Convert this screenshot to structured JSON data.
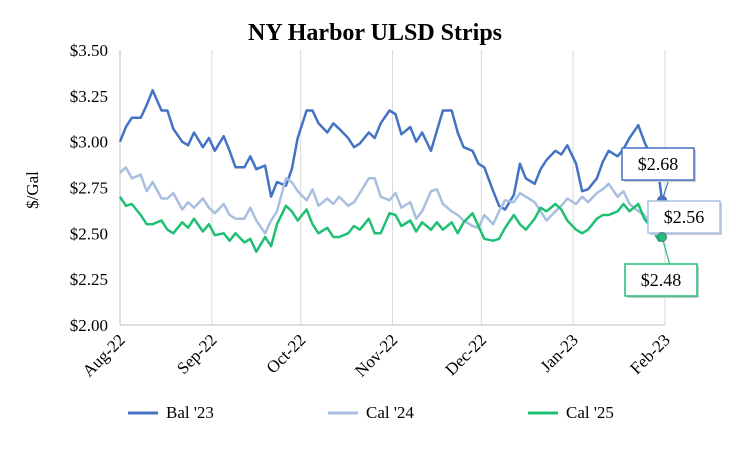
{
  "chart_data": {
    "type": "line",
    "title": "NY Harbor ULSD Strips",
    "ylabel": "$/Gal",
    "xlabel": "",
    "ylim": [
      2.0,
      3.5
    ],
    "xlim": [
      "2022-08-01",
      "2023-02-01"
    ],
    "yticks": [
      "$2.00",
      "$2.25",
      "$2.50",
      "$2.75",
      "$3.00",
      "$3.25",
      "$3.50"
    ],
    "xticks": [
      {
        "label": "Aug-22",
        "date": "2022-08-01"
      },
      {
        "label": "Sep-22",
        "date": "2022-09-01"
      },
      {
        "label": "Oct-22",
        "date": "2022-10-01"
      },
      {
        "label": "Nov-22",
        "date": "2022-11-01"
      },
      {
        "label": "Dec-22",
        "date": "2022-12-01"
      },
      {
        "label": "Jan-23",
        "date": "2023-01-01"
      },
      {
        "label": "Feb-23",
        "date": "2023-02-01"
      }
    ],
    "grid": {
      "x": true,
      "y": false
    },
    "legend": "bottom",
    "series": [
      {
        "name": "Bal '23",
        "color": "#4472c4",
        "points": [
          [
            "2022-08-01",
            3.0
          ],
          [
            "2022-08-03",
            3.08
          ],
          [
            "2022-08-05",
            3.13
          ],
          [
            "2022-08-08",
            3.13
          ],
          [
            "2022-08-10",
            3.2
          ],
          [
            "2022-08-12",
            3.28
          ],
          [
            "2022-08-15",
            3.17
          ],
          [
            "2022-08-17",
            3.17
          ],
          [
            "2022-08-19",
            3.07
          ],
          [
            "2022-08-22",
            3.0
          ],
          [
            "2022-08-24",
            2.98
          ],
          [
            "2022-08-26",
            3.05
          ],
          [
            "2022-08-29",
            2.97
          ],
          [
            "2022-08-31",
            3.02
          ],
          [
            "2022-09-02",
            2.95
          ],
          [
            "2022-09-05",
            3.03
          ],
          [
            "2022-09-07",
            2.95
          ],
          [
            "2022-09-09",
            2.86
          ],
          [
            "2022-09-12",
            2.86
          ],
          [
            "2022-09-14",
            2.92
          ],
          [
            "2022-09-16",
            2.85
          ],
          [
            "2022-09-19",
            2.87
          ],
          [
            "2022-09-21",
            2.7
          ],
          [
            "2022-09-23",
            2.78
          ],
          [
            "2022-09-26",
            2.76
          ],
          [
            "2022-09-28",
            2.85
          ],
          [
            "2022-09-30",
            3.02
          ],
          [
            "2022-10-03",
            3.17
          ],
          [
            "2022-10-05",
            3.17
          ],
          [
            "2022-10-07",
            3.1
          ],
          [
            "2022-10-10",
            3.05
          ],
          [
            "2022-10-12",
            3.1
          ],
          [
            "2022-10-14",
            3.07
          ],
          [
            "2022-10-17",
            3.02
          ],
          [
            "2022-10-19",
            2.97
          ],
          [
            "2022-10-21",
            2.99
          ],
          [
            "2022-10-24",
            3.05
          ],
          [
            "2022-10-26",
            3.02
          ],
          [
            "2022-10-28",
            3.1
          ],
          [
            "2022-10-31",
            3.17
          ],
          [
            "2022-11-02",
            3.15
          ],
          [
            "2022-11-04",
            3.04
          ],
          [
            "2022-11-07",
            3.08
          ],
          [
            "2022-11-09",
            3.0
          ],
          [
            "2022-11-11",
            3.05
          ],
          [
            "2022-11-14",
            2.95
          ],
          [
            "2022-11-16",
            3.06
          ],
          [
            "2022-11-18",
            3.17
          ],
          [
            "2022-11-21",
            3.17
          ],
          [
            "2022-11-23",
            3.05
          ],
          [
            "2022-11-25",
            2.97
          ],
          [
            "2022-11-28",
            2.95
          ],
          [
            "2022-11-30",
            2.88
          ],
          [
            "2022-12-02",
            2.86
          ],
          [
            "2022-12-05",
            2.73
          ],
          [
            "2022-12-07",
            2.65
          ],
          [
            "2022-12-09",
            2.63
          ],
          [
            "2022-12-12",
            2.71
          ],
          [
            "2022-12-14",
            2.88
          ],
          [
            "2022-12-16",
            2.8
          ],
          [
            "2022-12-19",
            2.77
          ],
          [
            "2022-12-21",
            2.85
          ],
          [
            "2022-12-23",
            2.9
          ],
          [
            "2022-12-26",
            2.95
          ],
          [
            "2022-12-28",
            2.93
          ],
          [
            "2022-12-30",
            2.98
          ],
          [
            "2023-01-02",
            2.88
          ],
          [
            "2023-01-04",
            2.73
          ],
          [
            "2023-01-06",
            2.74
          ],
          [
            "2023-01-09",
            2.8
          ],
          [
            "2023-01-11",
            2.89
          ],
          [
            "2023-01-13",
            2.95
          ],
          [
            "2023-01-16",
            2.92
          ],
          [
            "2023-01-18",
            2.96
          ],
          [
            "2023-01-20",
            3.02
          ],
          [
            "2023-01-23",
            3.09
          ],
          [
            "2023-01-25",
            3.0
          ],
          [
            "2023-01-27",
            2.93
          ],
          [
            "2023-01-30",
            2.8
          ],
          [
            "2023-01-31",
            2.68
          ]
        ]
      },
      {
        "name": "Cal '24",
        "color": "#a9bfe0",
        "points": [
          [
            "2022-08-01",
            2.83
          ],
          [
            "2022-08-03",
            2.86
          ],
          [
            "2022-08-05",
            2.8
          ],
          [
            "2022-08-08",
            2.82
          ],
          [
            "2022-08-10",
            2.73
          ],
          [
            "2022-08-12",
            2.78
          ],
          [
            "2022-08-15",
            2.69
          ],
          [
            "2022-08-17",
            2.69
          ],
          [
            "2022-08-19",
            2.72
          ],
          [
            "2022-08-22",
            2.63
          ],
          [
            "2022-08-24",
            2.67
          ],
          [
            "2022-08-26",
            2.64
          ],
          [
            "2022-08-29",
            2.69
          ],
          [
            "2022-08-31",
            2.64
          ],
          [
            "2022-09-02",
            2.61
          ],
          [
            "2022-09-05",
            2.66
          ],
          [
            "2022-09-07",
            2.6
          ],
          [
            "2022-09-09",
            2.58
          ],
          [
            "2022-09-12",
            2.58
          ],
          [
            "2022-09-14",
            2.64
          ],
          [
            "2022-09-16",
            2.57
          ],
          [
            "2022-09-19",
            2.5
          ],
          [
            "2022-09-21",
            2.57
          ],
          [
            "2022-09-23",
            2.62
          ],
          [
            "2022-09-26",
            2.8
          ],
          [
            "2022-09-28",
            2.78
          ],
          [
            "2022-09-30",
            2.73
          ],
          [
            "2022-10-03",
            2.68
          ],
          [
            "2022-10-05",
            2.74
          ],
          [
            "2022-10-07",
            2.65
          ],
          [
            "2022-10-10",
            2.69
          ],
          [
            "2022-10-12",
            2.66
          ],
          [
            "2022-10-14",
            2.7
          ],
          [
            "2022-10-17",
            2.65
          ],
          [
            "2022-10-19",
            2.67
          ],
          [
            "2022-10-21",
            2.72
          ],
          [
            "2022-10-24",
            2.8
          ],
          [
            "2022-10-26",
            2.8
          ],
          [
            "2022-10-28",
            2.7
          ],
          [
            "2022-10-31",
            2.68
          ],
          [
            "2022-11-02",
            2.72
          ],
          [
            "2022-11-04",
            2.64
          ],
          [
            "2022-11-07",
            2.67
          ],
          [
            "2022-11-09",
            2.58
          ],
          [
            "2022-11-11",
            2.62
          ],
          [
            "2022-11-14",
            2.73
          ],
          [
            "2022-11-16",
            2.74
          ],
          [
            "2022-11-18",
            2.66
          ],
          [
            "2022-11-21",
            2.62
          ],
          [
            "2022-11-23",
            2.6
          ],
          [
            "2022-11-25",
            2.57
          ],
          [
            "2022-11-28",
            2.54
          ],
          [
            "2022-11-30",
            2.53
          ],
          [
            "2022-12-02",
            2.6
          ],
          [
            "2022-12-05",
            2.55
          ],
          [
            "2022-12-07",
            2.62
          ],
          [
            "2022-12-09",
            2.68
          ],
          [
            "2022-12-12",
            2.67
          ],
          [
            "2022-12-14",
            2.72
          ],
          [
            "2022-12-16",
            2.7
          ],
          [
            "2022-12-19",
            2.67
          ],
          [
            "2022-12-21",
            2.62
          ],
          [
            "2022-12-23",
            2.57
          ],
          [
            "2022-12-26",
            2.62
          ],
          [
            "2022-12-28",
            2.65
          ],
          [
            "2022-12-30",
            2.69
          ],
          [
            "2023-01-02",
            2.66
          ],
          [
            "2023-01-04",
            2.7
          ],
          [
            "2023-01-06",
            2.67
          ],
          [
            "2023-01-09",
            2.72
          ],
          [
            "2023-01-11",
            2.74
          ],
          [
            "2023-01-13",
            2.77
          ],
          [
            "2023-01-16",
            2.7
          ],
          [
            "2023-01-18",
            2.73
          ],
          [
            "2023-01-20",
            2.66
          ],
          [
            "2023-01-23",
            2.62
          ],
          [
            "2023-01-25",
            2.6
          ],
          [
            "2023-01-27",
            2.55
          ],
          [
            "2023-01-30",
            2.53
          ],
          [
            "2023-01-31",
            2.56
          ]
        ]
      },
      {
        "name": "Cal '25",
        "color": "#1fbf74",
        "points": [
          [
            "2022-08-01",
            2.7
          ],
          [
            "2022-08-03",
            2.65
          ],
          [
            "2022-08-05",
            2.66
          ],
          [
            "2022-08-08",
            2.6
          ],
          [
            "2022-08-10",
            2.55
          ],
          [
            "2022-08-12",
            2.55
          ],
          [
            "2022-08-15",
            2.57
          ],
          [
            "2022-08-17",
            2.52
          ],
          [
            "2022-08-19",
            2.5
          ],
          [
            "2022-08-22",
            2.56
          ],
          [
            "2022-08-24",
            2.53
          ],
          [
            "2022-08-26",
            2.58
          ],
          [
            "2022-08-29",
            2.51
          ],
          [
            "2022-08-31",
            2.55
          ],
          [
            "2022-09-02",
            2.49
          ],
          [
            "2022-09-05",
            2.5
          ],
          [
            "2022-09-07",
            2.46
          ],
          [
            "2022-09-09",
            2.5
          ],
          [
            "2022-09-12",
            2.45
          ],
          [
            "2022-09-14",
            2.47
          ],
          [
            "2022-09-16",
            2.4
          ],
          [
            "2022-09-19",
            2.48
          ],
          [
            "2022-09-21",
            2.43
          ],
          [
            "2022-09-23",
            2.55
          ],
          [
            "2022-09-26",
            2.65
          ],
          [
            "2022-09-28",
            2.62
          ],
          [
            "2022-09-30",
            2.57
          ],
          [
            "2022-10-03",
            2.63
          ],
          [
            "2022-10-05",
            2.55
          ],
          [
            "2022-10-07",
            2.5
          ],
          [
            "2022-10-10",
            2.53
          ],
          [
            "2022-10-12",
            2.48
          ],
          [
            "2022-10-14",
            2.48
          ],
          [
            "2022-10-17",
            2.5
          ],
          [
            "2022-10-19",
            2.54
          ],
          [
            "2022-10-21",
            2.52
          ],
          [
            "2022-10-24",
            2.58
          ],
          [
            "2022-10-26",
            2.5
          ],
          [
            "2022-10-28",
            2.5
          ],
          [
            "2022-10-31",
            2.61
          ],
          [
            "2022-11-02",
            2.6
          ],
          [
            "2022-11-04",
            2.54
          ],
          [
            "2022-11-07",
            2.57
          ],
          [
            "2022-11-09",
            2.51
          ],
          [
            "2022-11-11",
            2.56
          ],
          [
            "2022-11-14",
            2.52
          ],
          [
            "2022-11-16",
            2.56
          ],
          [
            "2022-11-18",
            2.52
          ],
          [
            "2022-11-21",
            2.56
          ],
          [
            "2022-11-23",
            2.5
          ],
          [
            "2022-11-25",
            2.56
          ],
          [
            "2022-11-28",
            2.61
          ],
          [
            "2022-11-30",
            2.54
          ],
          [
            "2022-12-02",
            2.47
          ],
          [
            "2022-12-05",
            2.46
          ],
          [
            "2022-12-07",
            2.47
          ],
          [
            "2022-12-09",
            2.53
          ],
          [
            "2022-12-12",
            2.6
          ],
          [
            "2022-12-14",
            2.55
          ],
          [
            "2022-12-16",
            2.52
          ],
          [
            "2022-12-19",
            2.58
          ],
          [
            "2022-12-21",
            2.64
          ],
          [
            "2022-12-23",
            2.62
          ],
          [
            "2022-12-26",
            2.66
          ],
          [
            "2022-12-28",
            2.63
          ],
          [
            "2022-12-30",
            2.57
          ],
          [
            "2023-01-02",
            2.52
          ],
          [
            "2023-01-04",
            2.5
          ],
          [
            "2023-01-06",
            2.52
          ],
          [
            "2023-01-09",
            2.58
          ],
          [
            "2023-01-11",
            2.6
          ],
          [
            "2023-01-13",
            2.6
          ],
          [
            "2023-01-16",
            2.62
          ],
          [
            "2023-01-18",
            2.66
          ],
          [
            "2023-01-20",
            2.62
          ],
          [
            "2023-01-23",
            2.66
          ],
          [
            "2023-01-25",
            2.58
          ],
          [
            "2023-01-27",
            2.54
          ],
          [
            "2023-01-30",
            2.46
          ],
          [
            "2023-01-31",
            2.48
          ]
        ]
      }
    ],
    "callouts": [
      {
        "series": "Bal '23",
        "label": "$2.68",
        "value": 2.68
      },
      {
        "series": "Cal '24",
        "label": "$2.56",
        "value": 2.56
      },
      {
        "series": "Cal '25",
        "label": "$2.48",
        "value": 2.48
      }
    ]
  }
}
